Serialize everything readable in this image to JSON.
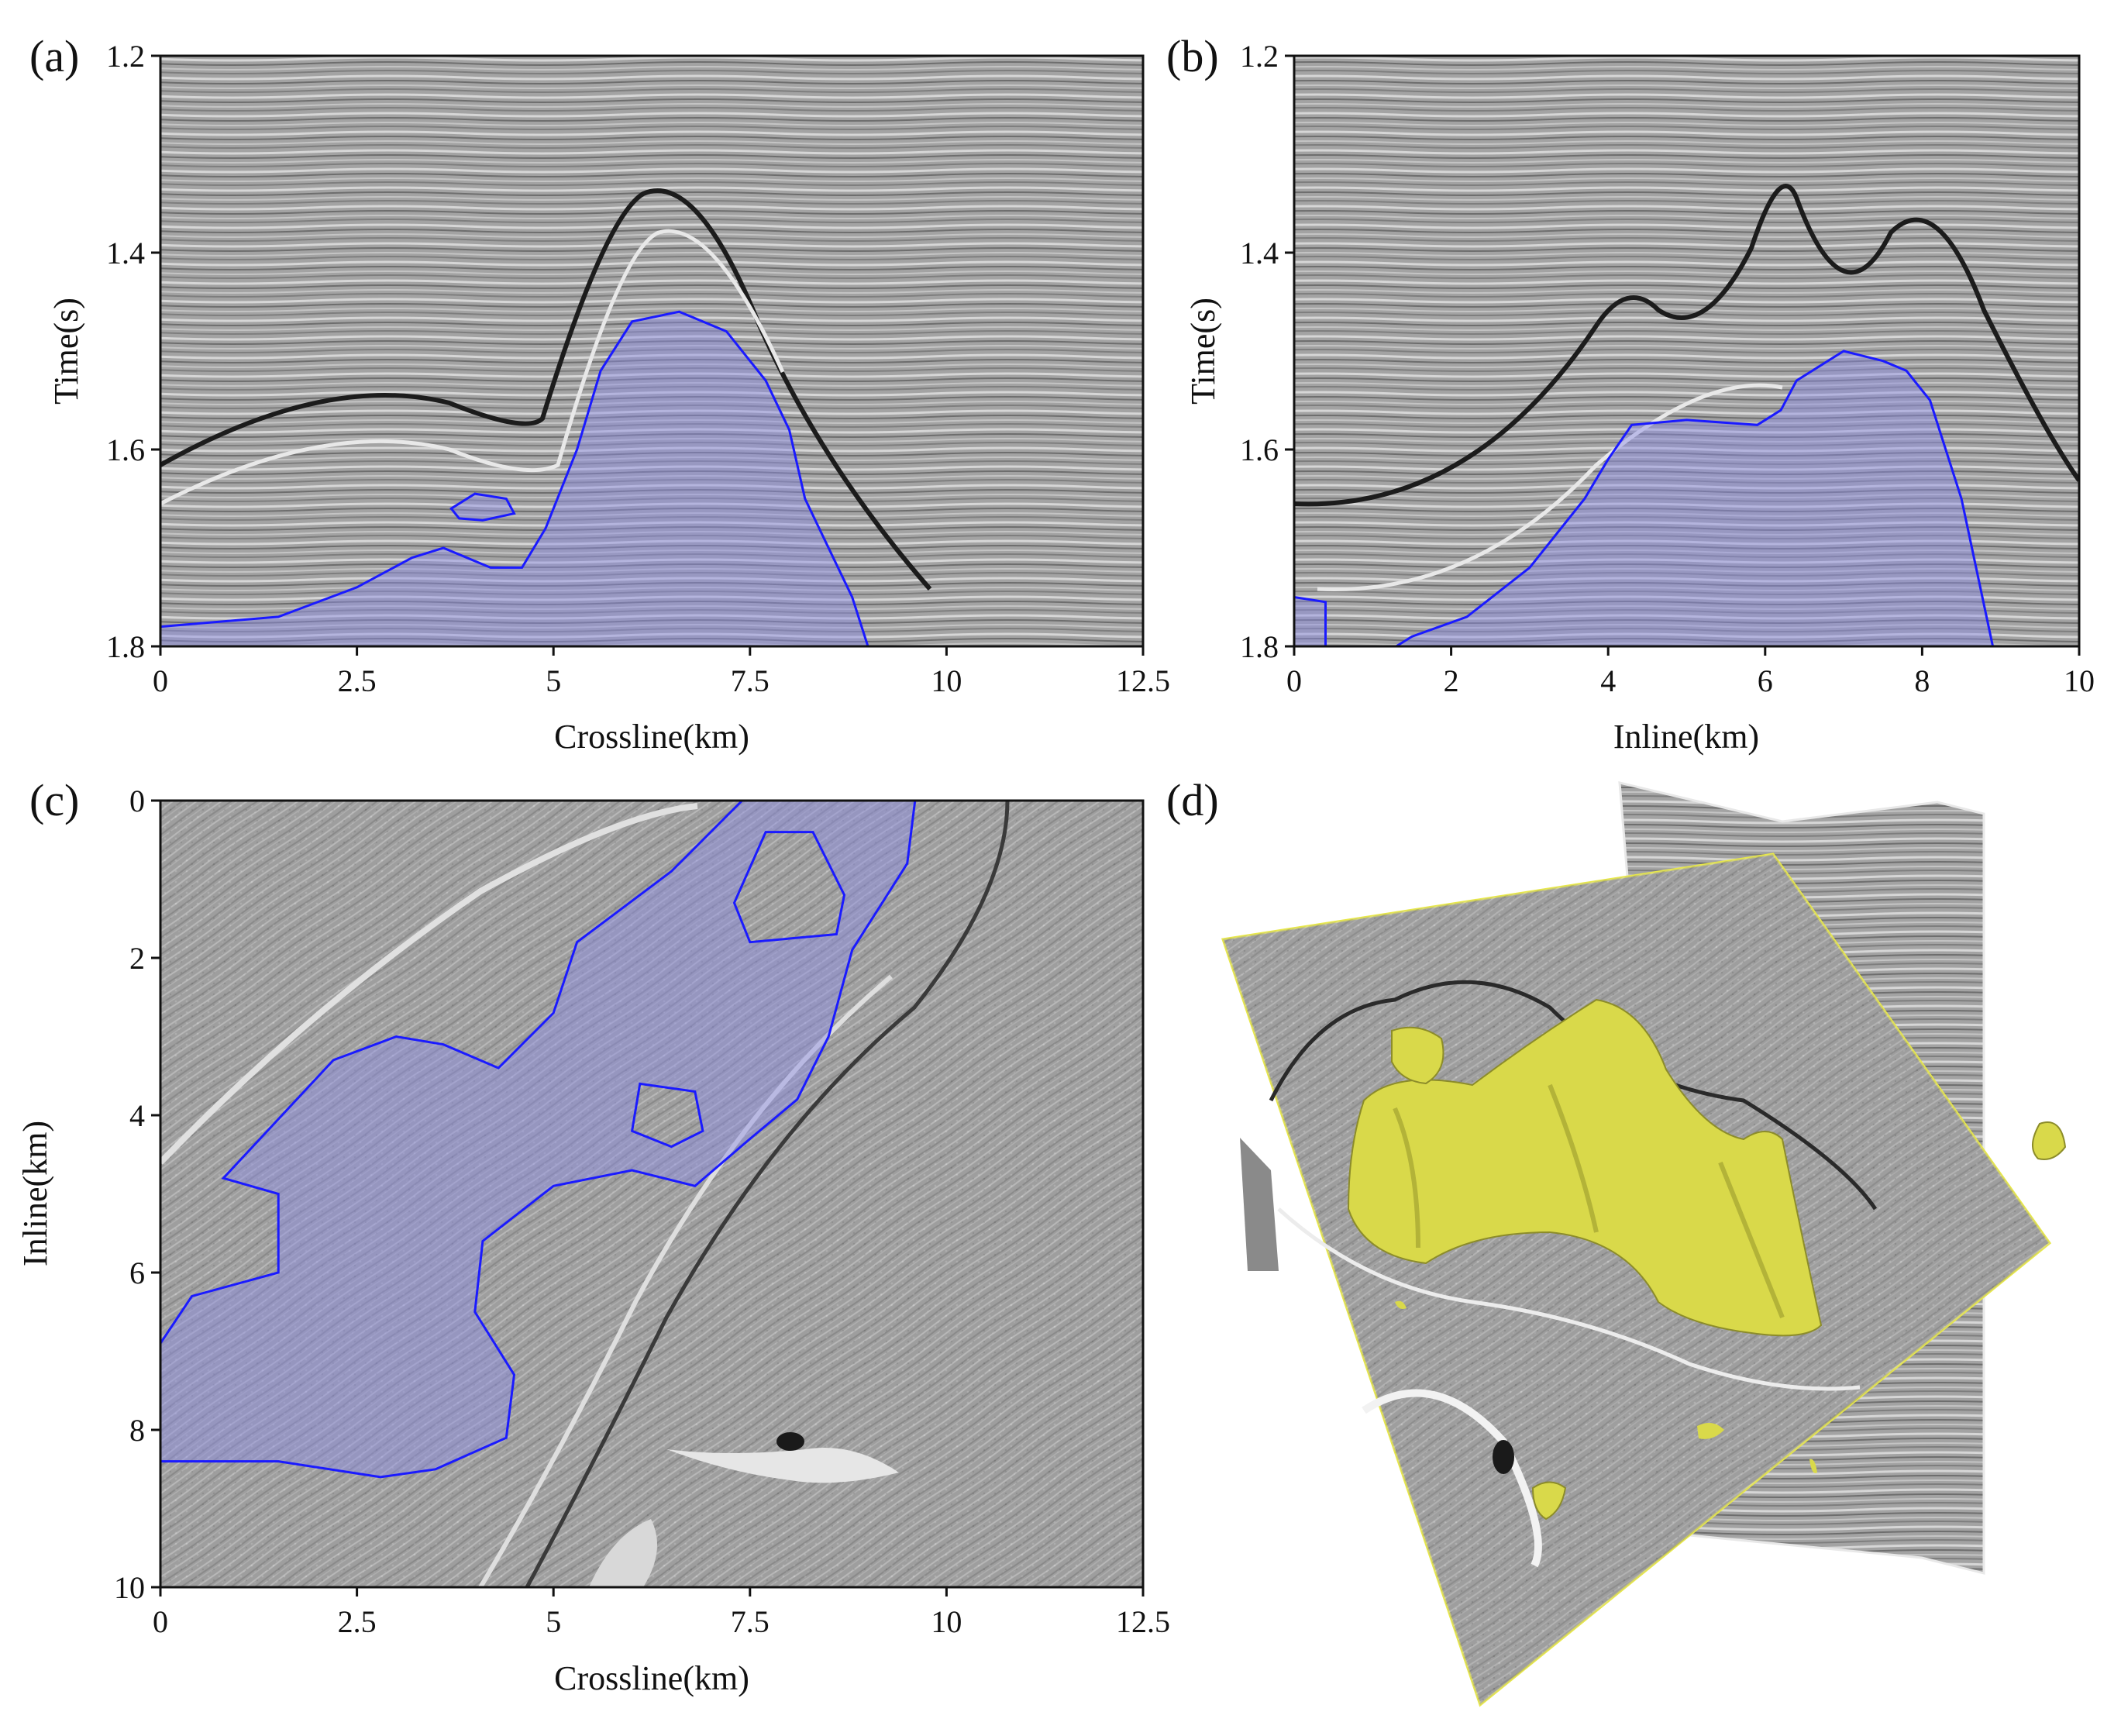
{
  "panels": {
    "a": {
      "label": "(a)",
      "xlabel": "Crossline(km)",
      "ylabel": "Time(s)",
      "xticks": [
        "0",
        "2.5",
        "5",
        "7.5",
        "10",
        "12.5"
      ],
      "yticks": [
        "1.2",
        "1.4",
        "1.6",
        "1.8"
      ]
    },
    "b": {
      "label": "(b)",
      "xlabel": "Inline(km)",
      "ylabel": "Time(s)",
      "xticks": [
        "0",
        "2",
        "4",
        "6",
        "8",
        "10"
      ],
      "yticks": [
        "1.2",
        "1.4",
        "1.6",
        "1.8"
      ]
    },
    "c": {
      "label": "(c)",
      "xlabel": "Crossline(km)",
      "ylabel": "Inline(km)",
      "xticks": [
        "0",
        "2.5",
        "5",
        "7.5",
        "10",
        "12.5"
      ],
      "yticks": [
        "0",
        "2",
        "4",
        "6",
        "8",
        "10"
      ]
    },
    "d": {
      "label": "(d)"
    }
  },
  "colors": {
    "outline": "#1a1aff",
    "fill": "#8c8ce6",
    "body3d": "#d9d94a",
    "plane_edge": "#e8e84a",
    "seismic_bg": "#9a9a9a"
  },
  "chart_data": [
    {
      "type": "image",
      "panel": "a",
      "xlabel": "Crossline(km)",
      "ylabel": "Time(s)",
      "xlim": [
        0,
        12.5
      ],
      "ylim": [
        1.8,
        1.2
      ],
      "outline": [
        [
          0,
          1.78
        ],
        [
          1.5,
          1.77
        ],
        [
          2.5,
          1.74
        ],
        [
          3.2,
          1.71
        ],
        [
          3.6,
          1.7
        ],
        [
          4.2,
          1.72
        ],
        [
          4.6,
          1.72
        ],
        [
          4.9,
          1.68
        ],
        [
          5.3,
          1.6
        ],
        [
          5.6,
          1.52
        ],
        [
          6.0,
          1.47
        ],
        [
          6.6,
          1.46
        ],
        [
          7.2,
          1.48
        ],
        [
          7.7,
          1.53
        ],
        [
          8.0,
          1.58
        ],
        [
          8.2,
          1.65
        ],
        [
          8.5,
          1.7
        ],
        [
          8.8,
          1.75
        ],
        [
          9.0,
          1.8
        ]
      ],
      "island": [
        [
          3.7,
          1.66
        ],
        [
          4.0,
          1.645
        ],
        [
          4.4,
          1.65
        ],
        [
          4.5,
          1.665
        ],
        [
          4.1,
          1.672
        ],
        [
          3.8,
          1.67
        ]
      ]
    },
    {
      "type": "image",
      "panel": "b",
      "xlabel": "Inline(km)",
      "ylabel": "Time(s)",
      "xlim": [
        0,
        10
      ],
      "ylim": [
        1.8,
        1.2
      ],
      "outline": [
        [
          1.3,
          1.8
        ],
        [
          1.5,
          1.79
        ],
        [
          2.2,
          1.77
        ],
        [
          3.0,
          1.72
        ],
        [
          3.7,
          1.65
        ],
        [
          4.0,
          1.61
        ],
        [
          4.3,
          1.575
        ],
        [
          5.0,
          1.57
        ],
        [
          5.9,
          1.575
        ],
        [
          6.2,
          1.56
        ],
        [
          6.4,
          1.53
        ],
        [
          7.0,
          1.5
        ],
        [
          7.5,
          1.51
        ],
        [
          7.8,
          1.52
        ],
        [
          8.1,
          1.55
        ],
        [
          8.5,
          1.65
        ],
        [
          8.9,
          1.8
        ]
      ],
      "corner": [
        [
          0,
          1.75
        ],
        [
          0.4,
          1.755
        ],
        [
          0.4,
          1.8
        ],
        [
          0,
          1.8
        ]
      ]
    },
    {
      "type": "image",
      "panel": "c",
      "xlabel": "Crossline(km)",
      "ylabel": "Inline(km)",
      "xlim": [
        0,
        12.5
      ],
      "ylim": [
        10,
        0
      ],
      "outline": [
        [
          0,
          6.9
        ],
        [
          0.4,
          6.3
        ],
        [
          1.5,
          6.0
        ],
        [
          1.5,
          5.0
        ],
        [
          0.8,
          4.8
        ],
        [
          2.2,
          3.3
        ],
        [
          3.0,
          3.0
        ],
        [
          3.6,
          3.1
        ],
        [
          4.3,
          3.4
        ],
        [
          5.0,
          2.7
        ],
        [
          5.3,
          1.8
        ],
        [
          6.5,
          0.9
        ],
        [
          7.4,
          0.0
        ],
        [
          9.6,
          0.0
        ],
        [
          9.5,
          0.8
        ],
        [
          8.8,
          1.9
        ],
        [
          8.5,
          3.0
        ],
        [
          8.1,
          3.8
        ],
        [
          7.5,
          4.3
        ],
        [
          6.8,
          4.9
        ],
        [
          6.0,
          4.7
        ],
        [
          5.0,
          4.9
        ],
        [
          4.1,
          5.6
        ],
        [
          4.0,
          6.5
        ],
        [
          4.5,
          7.3
        ],
        [
          4.4,
          8.1
        ],
        [
          3.5,
          8.5
        ],
        [
          2.8,
          8.6
        ],
        [
          1.5,
          8.4
        ],
        [
          0,
          8.4
        ]
      ],
      "holes": [
        [
          [
            7.7,
            0.4
          ],
          [
            8.3,
            0.4
          ],
          [
            8.7,
            1.2
          ],
          [
            8.6,
            1.7
          ],
          [
            7.5,
            1.8
          ],
          [
            7.3,
            1.3
          ]
        ],
        [
          [
            6.1,
            3.6
          ],
          [
            6.8,
            3.7
          ],
          [
            6.9,
            4.2
          ],
          [
            6.5,
            4.4
          ],
          [
            6.0,
            4.2
          ]
        ]
      ]
    }
  ]
}
